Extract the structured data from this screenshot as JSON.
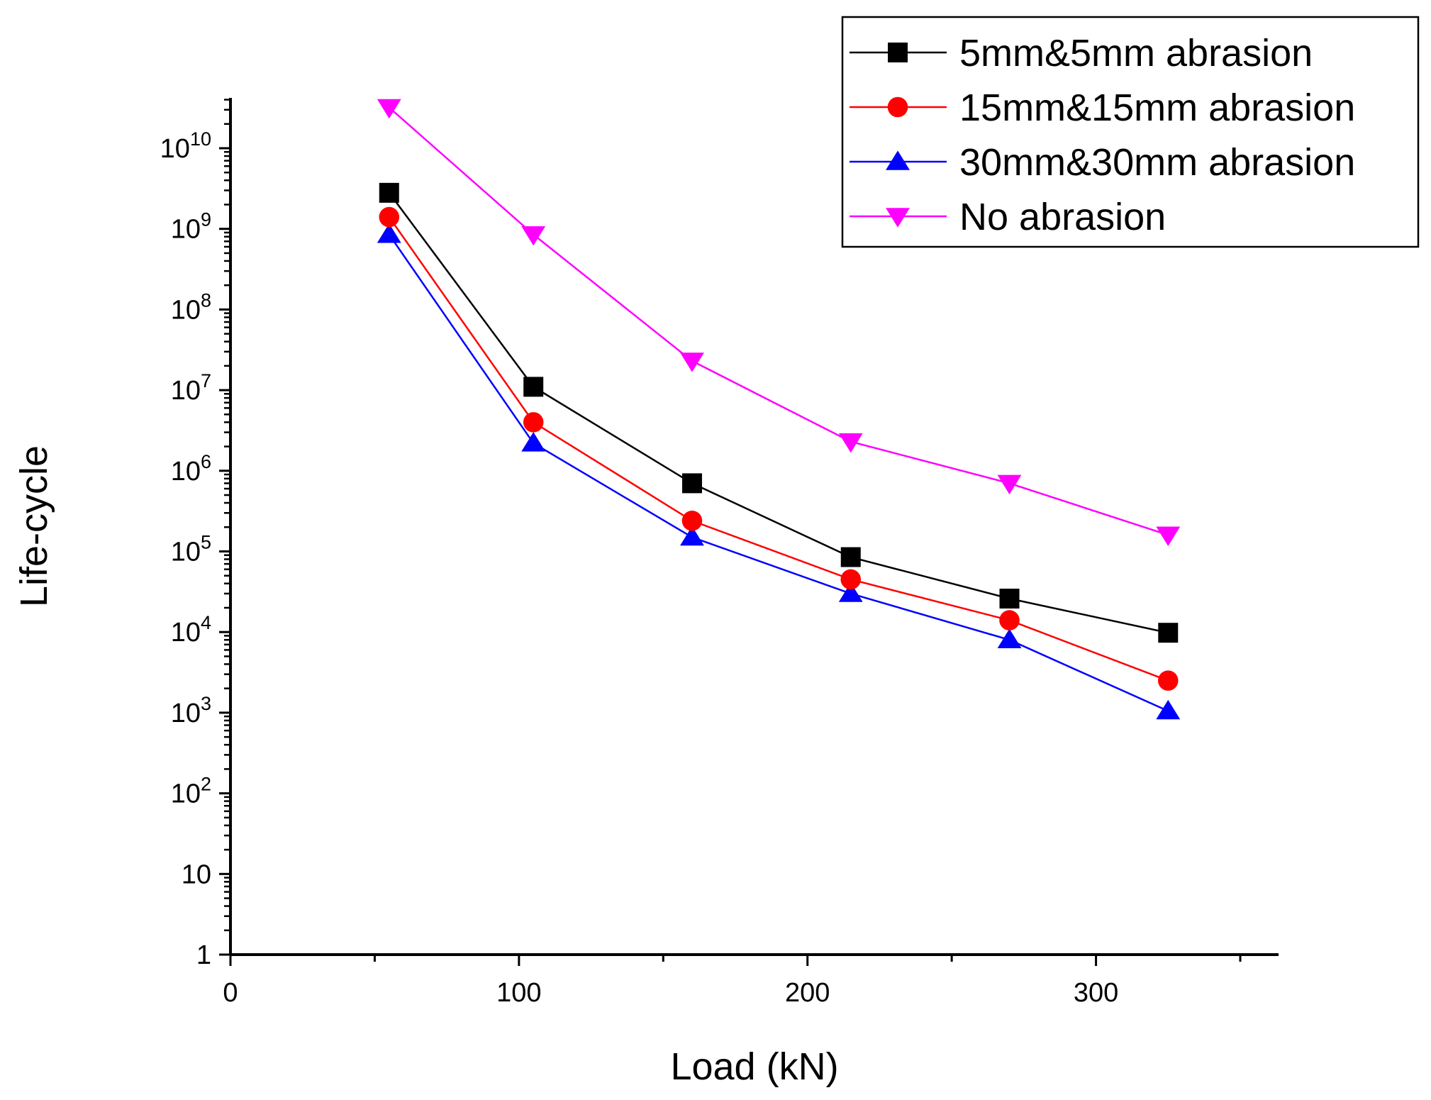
{
  "chart_data": {
    "type": "line",
    "title": "",
    "xlabel": "Load (kN)",
    "ylabel": "Life-cycle",
    "xlim": [
      0,
      350
    ],
    "ylim": [
      1,
      100000000000
    ],
    "yscale": "log",
    "x_ticks": [
      {
        "value": 0,
        "label": "0"
      },
      {
        "value": 100,
        "label": "100"
      },
      {
        "value": 200,
        "label": "200"
      },
      {
        "value": 300,
        "label": "300"
      }
    ],
    "y_ticks": [
      {
        "exp": 0,
        "label": "1"
      },
      {
        "exp": 1,
        "label": "10"
      },
      {
        "exp": 2,
        "base": "10",
        "sup": "2"
      },
      {
        "exp": 3,
        "base": "10",
        "sup": "3"
      },
      {
        "exp": 4,
        "base": "10",
        "sup": "4"
      },
      {
        "exp": 5,
        "base": "10",
        "sup": "5"
      },
      {
        "exp": 6,
        "base": "10",
        "sup": "6"
      },
      {
        "exp": 7,
        "base": "10",
        "sup": "7"
      },
      {
        "exp": 8,
        "base": "10",
        "sup": "8"
      },
      {
        "exp": 9,
        "base": "10",
        "sup": "9"
      },
      {
        "exp": 10,
        "base": "10",
        "sup": "10"
      }
    ],
    "x": [
      55,
      105,
      160,
      215,
      270,
      325
    ],
    "series": [
      {
        "name": "5mm&5mm abrasion",
        "color": "#000000",
        "marker": "square",
        "values": [
          2800000000,
          11000000,
          700000,
          85000,
          26000,
          9800
        ]
      },
      {
        "name": "15mm&15mm abrasion",
        "color": "#ff0000",
        "marker": "circle",
        "values": [
          1400000000,
          4000000,
          240000,
          45000,
          14000,
          2500
        ]
      },
      {
        "name": "30mm&30mm abrasion",
        "color": "#0000ff",
        "marker": "triangle-up",
        "values": [
          850000000,
          2200000,
          150000,
          30000,
          8000,
          1050
        ]
      },
      {
        "name": "No abrasion",
        "color": "#ff00ff",
        "marker": "triangle-down",
        "values": [
          32000000000,
          850000000,
          23000000,
          2300000,
          700000,
          160000
        ]
      }
    ],
    "legend": "top-right",
    "grid": false
  }
}
